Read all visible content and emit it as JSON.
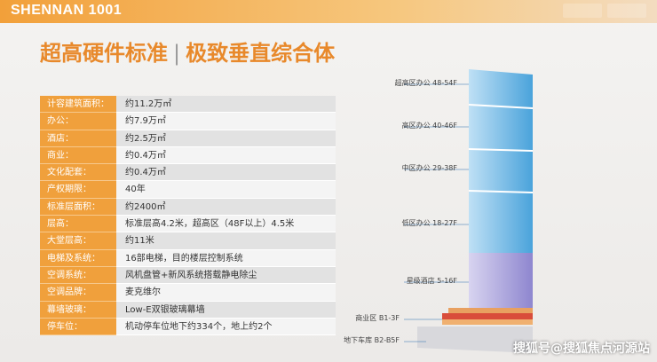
{
  "header": {
    "title": "SHENNAN 1001"
  },
  "title": {
    "left": "超高硬件标准",
    "right": "极致垂直综合体"
  },
  "table": {
    "rows": [
      [
        "计容建筑面积：",
        "约11.2万㎡"
      ],
      [
        "办公：",
        "约7.9万㎡"
      ],
      [
        "酒店：",
        "约2.5万㎡"
      ],
      [
        "商业：",
        "约0.4万㎡"
      ],
      [
        "文化配套：",
        "约0.4万㎡"
      ],
      [
        "产权期限：",
        "40年"
      ],
      [
        "标准层面积：",
        "约2400㎡"
      ],
      [
        "层高：",
        "标准层高4.2米，超高区（48F以上）4.5米"
      ],
      [
        "大堂层高：",
        "约11米"
      ],
      [
        "电梯及系统：",
        "16部电梯，目的楼层控制系统"
      ],
      [
        "空调系统：",
        "风机盘管+新风系统搭载静电除尘"
      ],
      [
        "空调品牌：",
        "麦克维尔"
      ],
      [
        "幕墙玻璃：",
        "Low-E双银玻璃幕墙"
      ],
      [
        "停车位：",
        "机动停车位地下约334个，地上约2个"
      ]
    ]
  },
  "diagram": {
    "labels": [
      "超高区办公 48-54F",
      "高区办公 40-46F",
      "中区办公 29-38F",
      "低区办公 18-27F",
      "星级酒店 5-16F",
      "商业区 B1-3F",
      "地下车库 B2-B5F"
    ]
  },
  "watermark": "搜狐号@搜狐焦点河源站"
}
